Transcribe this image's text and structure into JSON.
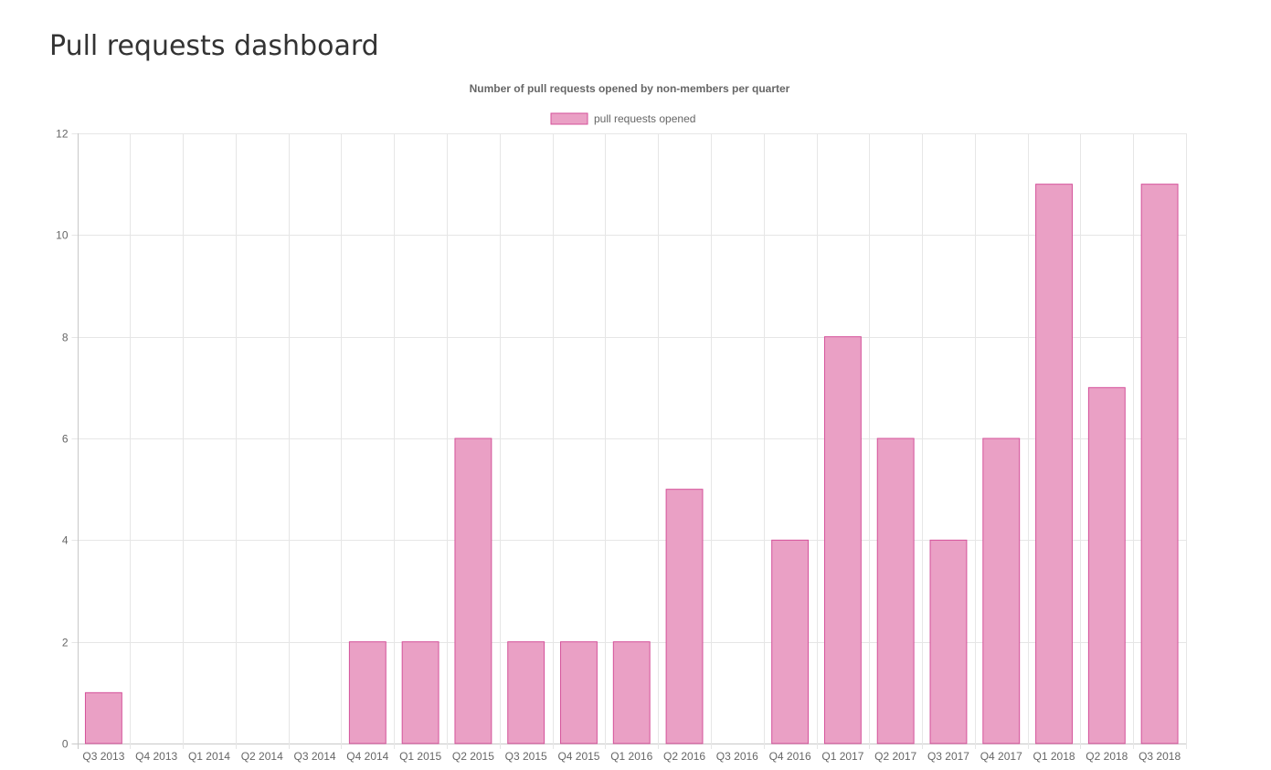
{
  "page": {
    "title": "Pull requests dashboard"
  },
  "chart_data": {
    "type": "bar",
    "title": "Number of pull requests opened by non-members per quarter",
    "legend_position": "top",
    "grid": true,
    "ylim": [
      0,
      12
    ],
    "y_ticks": [
      0,
      2,
      4,
      6,
      8,
      10,
      12
    ],
    "categories": [
      "Q3 2013",
      "Q4 2013",
      "Q1 2014",
      "Q2 2014",
      "Q3 2014",
      "Q4 2014",
      "Q1 2015",
      "Q2 2015",
      "Q3 2015",
      "Q4 2015",
      "Q1 2016",
      "Q2 2016",
      "Q3 2016",
      "Q4 2016",
      "Q1 2017",
      "Q2 2017",
      "Q3 2017",
      "Q4 2017",
      "Q1 2018",
      "Q2 2018",
      "Q3 2018"
    ],
    "series": [
      {
        "name": "pull requests opened",
        "values": [
          1,
          0,
          0,
          0,
          0,
          2,
          2,
          6,
          2,
          2,
          2,
          5,
          0,
          4,
          8,
          6,
          4,
          6,
          11,
          7,
          11
        ],
        "fill_color": "#eaa0c5",
        "border_color": "#d4529a"
      }
    ]
  }
}
